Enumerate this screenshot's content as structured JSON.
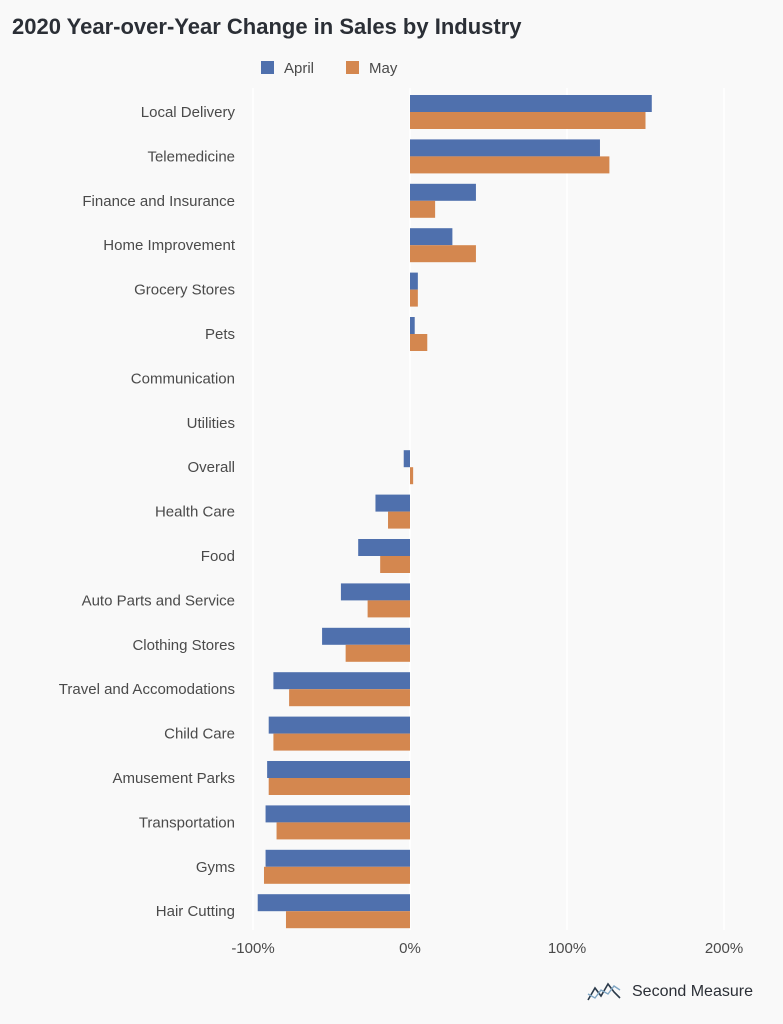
{
  "chart_data": {
    "type": "bar",
    "orientation": "horizontal",
    "title": "2020 Year-over-Year Change in Sales by Industry",
    "xlabel": "",
    "ylabel": "",
    "unit": "%",
    "xlim": [
      -100,
      215
    ],
    "xticks": [
      -100,
      0,
      100,
      200
    ],
    "xtick_labels": [
      "-100%",
      "0%",
      "100%",
      "200%"
    ],
    "grid": "vertical",
    "legend": "top",
    "categories": [
      "Local Delivery",
      "Telemedicine",
      "Finance and Insurance",
      "Home Improvement",
      "Grocery Stores",
      "Pets",
      "Communication",
      "Utilities",
      "Overall",
      "Health Care",
      "Food",
      "Auto Parts and Service",
      "Clothing Stores",
      "Travel and Accomodations",
      "Child Care",
      "Amusement Parks",
      "Transportation",
      "Gyms",
      "Hair Cutting"
    ],
    "series": [
      {
        "name": "April",
        "color": "#4f70ad",
        "values": [
          154,
          121,
          42,
          27,
          5,
          3,
          0,
          0,
          -4,
          -22,
          -33,
          -44,
          -56,
          -87,
          -90,
          -91,
          -92,
          -92,
          -97
        ]
      },
      {
        "name": "May",
        "color": "#d4874f",
        "values": [
          150,
          127,
          16,
          42,
          5,
          11,
          0,
          0,
          2,
          -14,
          -19,
          -27,
          -41,
          -77,
          -87,
          -90,
          -85,
          -93,
          -79
        ]
      }
    ]
  },
  "brand": {
    "name": "Second Measure",
    "icon": "second-measure-logo-icon"
  }
}
